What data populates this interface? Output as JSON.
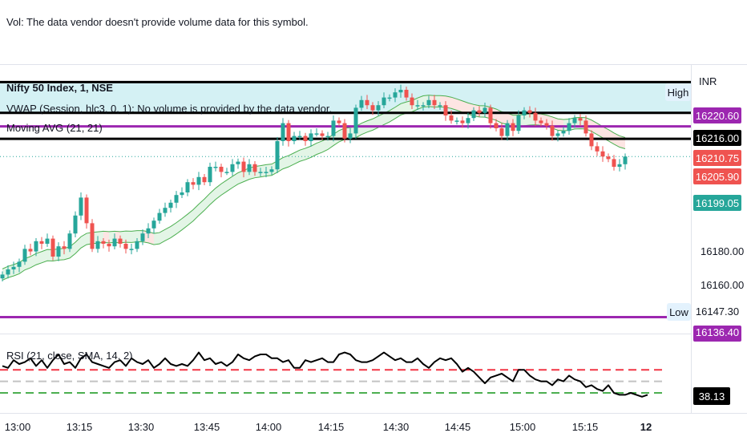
{
  "header": {
    "vol_notice": "Vol: The data vendor doesn't provide volume data for this symbol."
  },
  "legend": {
    "symbol": "Nifty 50 Index, 1, NSE",
    "vwap": "VWAP (Session, hlc3, 0, 1): No volume is provided by the data vendor.",
    "moving_avg": "Moving AVG (21, 21)",
    "rsi": "RSI (21, close, SMA, 14, 2)"
  },
  "price_axis": {
    "currency": "INR",
    "ticks": [
      "16180.00",
      "16160.00"
    ],
    "badges": [
      {
        "label": "16220.60",
        "bg": "#9c27b0",
        "fg": "#ffffff"
      },
      {
        "label": "16216.00",
        "bg": "#000000",
        "fg": "#ffffff"
      },
      {
        "label": "16210.75",
        "bg": "#ef5350",
        "fg": "#ffffff"
      },
      {
        "label": "16205.90",
        "bg": "#ef5350",
        "fg": "#ffffff"
      },
      {
        "label": "16199.05",
        "bg": "#26a69a",
        "fg": "#ffffff"
      },
      {
        "label": "16147.30",
        "bg": "#ffffff",
        "fg": "#131722"
      },
      {
        "label": "16136.40",
        "bg": "#9c27b0",
        "fg": "#ffffff"
      }
    ],
    "high_label": "High",
    "low_label": "Low"
  },
  "rsi_axis": {
    "value_label": "38.13"
  },
  "time_axis": {
    "labels": [
      "13:00",
      "13:15",
      "13:30",
      "13:45",
      "14:00",
      "14:15",
      "14:30",
      "14:45",
      "15:00",
      "15:15",
      "12"
    ]
  },
  "colors": {
    "up": "#26a69a",
    "down": "#ef5350",
    "vwap_band": "#d4f1f4",
    "ma_up_fill": "#e3f5e6",
    "ma_down_fill": "#fde5e3",
    "line_purple": "#9c27b0",
    "line_black": "#000000",
    "rsi_upper": "#f23645",
    "rsi_mid": "#c3c3c3",
    "rsi_lower": "#4caf50"
  },
  "chart_data": [
    {
      "type": "line",
      "title": "Nifty 50 Index, 1, NSE",
      "xlabel": "",
      "ylabel": "INR",
      "ylim": [
        16130,
        16235
      ],
      "horizontal_lines": [
        {
          "name": "",
          "value": 16228,
          "color": "#000000"
        },
        {
          "name": "",
          "value": 16216.0,
          "color": "#000000"
        },
        {
          "name": "",
          "value": 16210.75,
          "color": "#9c27b0"
        },
        {
          "name": "",
          "value": 16205.9,
          "color": "#000000"
        },
        {
          "name": "",
          "value": 16136.4,
          "color": "#9c27b0"
        }
      ],
      "series": [
        {
          "name": "",
          "values": [
            16153,
            16155,
            16156,
            16158,
            16163,
            16162,
            16166,
            16165,
            16167,
            16160,
            16164,
            16163,
            16169,
            16176,
            16183,
            16173,
            16163,
            16166,
            16165,
            16164,
            16167,
            16165,
            16163,
            16163,
            16166,
            16169,
            16171,
            16174,
            16177,
            16179,
            16181,
            16184,
            16185,
            16189,
            16188,
            16191,
            16189,
            16195,
            16195,
            16193,
            16193,
            16196,
            16197,
            16193,
            16196,
            16193,
            16193,
            16193,
            16194,
            16205,
            16212,
            16205,
            16207,
            16207,
            16205,
            16208,
            16208,
            16207,
            16207,
            16213,
            16212,
            16206,
            16208,
            16218,
            16221,
            16219,
            16217,
            16219,
            16222,
            16222,
            16224,
            16225,
            16222,
            16219,
            16219,
            16219,
            16221,
            16219,
            16219,
            16215,
            16213,
            16213,
            16212,
            16214,
            16217,
            16216,
            16218,
            16212,
            16210,
            16207,
            16212,
            16209,
            16215,
            16217,
            16216,
            16213,
            16212,
            16211,
            16207,
            16208,
            16209,
            16212,
            16214,
            16213,
            16208,
            16203,
            16201,
            16199,
            16198,
            16195,
            16196,
            16199
          ]
        }
      ]
    },
    {
      "type": "line",
      "title": "RSI (21, close, SMA, 14, 2)",
      "series": [
        {
          "name": "",
          "values": [
            54,
            53,
            57,
            55,
            56,
            58,
            54,
            57,
            53,
            57,
            60,
            55,
            56,
            53,
            58,
            60,
            56,
            55,
            54,
            53,
            56,
            57,
            54,
            58,
            56,
            55,
            57,
            53,
            55,
            58,
            55,
            54,
            55,
            54,
            57,
            61,
            57,
            58,
            55,
            56,
            54,
            56,
            60,
            58,
            57,
            59,
            60,
            60,
            58,
            58,
            56,
            57,
            53,
            53,
            57,
            56,
            57,
            58,
            56,
            56,
            60,
            61,
            60,
            57,
            56,
            56,
            57,
            59,
            61,
            59,
            57,
            58,
            56,
            56,
            58,
            55,
            53,
            56,
            58,
            57,
            58,
            55,
            51,
            53,
            51,
            48,
            45,
            48,
            49,
            50,
            48,
            46,
            52,
            52,
            49,
            47,
            46,
            46,
            44,
            47,
            46,
            49,
            47,
            46,
            43,
            44,
            42,
            41,
            44,
            40,
            39,
            39,
            40,
            39,
            38,
            39
          ]
        }
      ],
      "reference_lines": [
        {
          "name": "",
          "value": 52,
          "color": "#f23645"
        },
        {
          "name": "",
          "value": 46,
          "color": "#c3c3c3"
        },
        {
          "name": "",
          "value": 40,
          "color": "#4caf50"
        }
      ],
      "current_value": 38.13
    }
  ]
}
